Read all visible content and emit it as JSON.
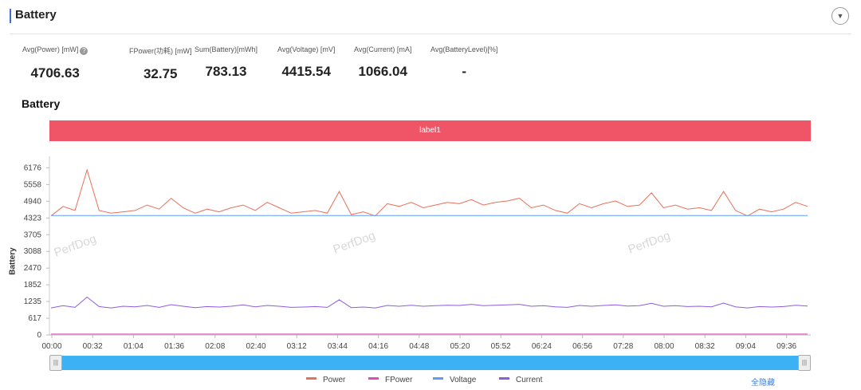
{
  "header": {
    "title": "Battery",
    "toggle_icon": "chevron-down-icon"
  },
  "metrics": [
    {
      "label": "Avg(Power) [mW]",
      "value": "4706.63",
      "help": true
    },
    {
      "label": "FPower(功耗) [mW]",
      "value": "32.75"
    },
    {
      "label": "Sum(Battery)[mWh]",
      "value": "783.13"
    },
    {
      "label": "Avg(Voltage) [mV]",
      "value": "4415.54"
    },
    {
      "label": "Avg(Current) [mA]",
      "value": "1066.04"
    },
    {
      "label": "Avg(BatteryLevel)[%]",
      "value": "-"
    }
  ],
  "section_title": "Battery",
  "label_band": "label1",
  "watermarks": [
    "PerfDog",
    "PerfDog",
    "PerfDog"
  ],
  "chart_data": {
    "type": "line",
    "title": "",
    "ylabel": "Battery",
    "xlabel": "",
    "y_ticks": [
      0,
      617,
      1235,
      1852,
      2470,
      3088,
      3705,
      4323,
      4940,
      5558,
      6176
    ],
    "x_ticks": [
      "00:00",
      "00:32",
      "01:04",
      "01:36",
      "02:08",
      "02:40",
      "03:12",
      "03:44",
      "04:16",
      "04:48",
      "05:20",
      "05:52",
      "06:24",
      "06:56",
      "07:28",
      "08:00",
      "08:32",
      "09:04",
      "09:36"
    ],
    "x_tick_step_seconds": 32,
    "duration_seconds": 608,
    "ylim": [
      0,
      6600
    ],
    "grid": false,
    "legend_position": "bottom",
    "series": [
      {
        "name": "Power",
        "color": "#e8705a",
        "values": [
          4400,
          4750,
          4600,
          6100,
          4600,
          4500,
          4550,
          4600,
          4800,
          4650,
          5050,
          4700,
          4500,
          4650,
          4550,
          4700,
          4800,
          4600,
          4900,
          4700,
          4500,
          4550,
          4600,
          4500,
          5300,
          4450,
          4550,
          4400,
          4850,
          4750,
          4900,
          4700,
          4800,
          4900,
          4850,
          5000,
          4800,
          4900,
          4950,
          5050,
          4700,
          4800,
          4600,
          4500,
          4850,
          4700,
          4850,
          4950,
          4750,
          4800,
          5250,
          4700,
          4800,
          4650,
          4700,
          4600,
          5300,
          4600,
          4400,
          4650,
          4550,
          4650,
          4900,
          4750
        ]
      },
      {
        "name": "FPower",
        "color": "#d94fb4",
        "values": [
          33,
          33,
          33,
          33,
          33,
          33,
          33,
          33,
          33,
          33,
          33,
          33,
          33,
          33,
          33,
          33,
          33,
          33,
          33
        ]
      },
      {
        "name": "Voltage",
        "color": "#5aa0f0",
        "values": [
          4415,
          4415,
          4415,
          4415,
          4415,
          4415,
          4415,
          4415,
          4415,
          4415,
          4415,
          4415,
          4415,
          4415,
          4415,
          4415,
          4415,
          4415,
          4415
        ]
      },
      {
        "name": "Current",
        "color": "#8e5ce0",
        "values": [
          1000,
          1080,
          1020,
          1400,
          1050,
          1000,
          1060,
          1040,
          1090,
          1020,
          1120,
          1060,
          1010,
          1050,
          1030,
          1060,
          1110,
          1040,
          1090,
          1060,
          1020,
          1030,
          1050,
          1020,
          1300,
          1010,
          1030,
          1000,
          1090,
          1060,
          1100,
          1060,
          1080,
          1100,
          1090,
          1130,
          1080,
          1100,
          1110,
          1130,
          1060,
          1080,
          1040,
          1020,
          1090,
          1060,
          1090,
          1110,
          1070,
          1080,
          1170,
          1060,
          1080,
          1050,
          1060,
          1040,
          1180,
          1040,
          1000,
          1050,
          1030,
          1050,
          1100,
          1070
        ]
      }
    ]
  },
  "legend": [
    {
      "name": "Power",
      "color": "#e8705a"
    },
    {
      "name": "FPower",
      "color": "#d94fb4"
    },
    {
      "name": "Voltage",
      "color": "#5aa0f0"
    },
    {
      "name": "Current",
      "color": "#8e5ce0"
    }
  ],
  "hide_all_label": "全隐藏"
}
